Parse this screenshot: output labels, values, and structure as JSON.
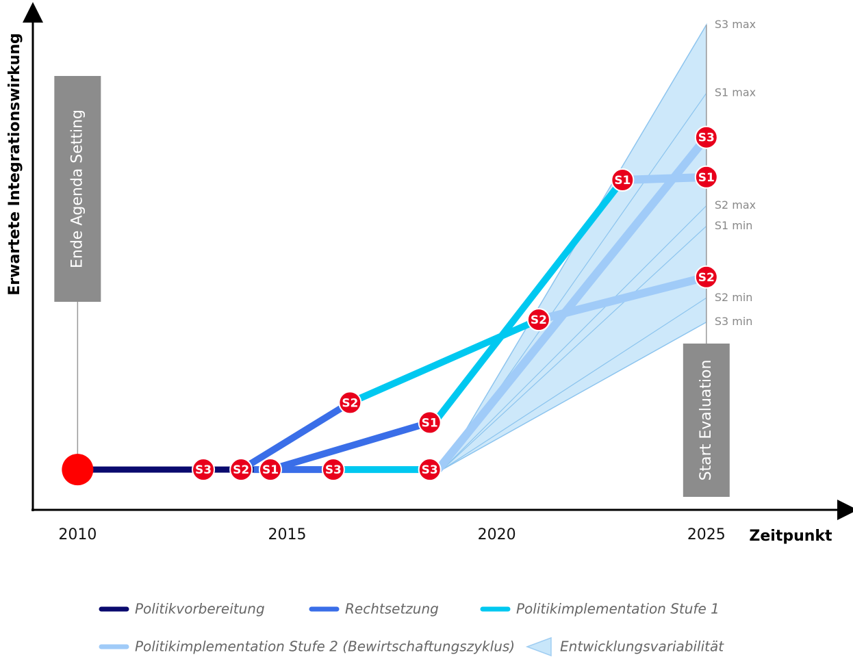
{
  "chart_data": {
    "type": "line",
    "xlabel": "Zeitpunkt",
    "ylabel": "Erwartete Integrationswirkung",
    "xlim": [
      2008.9,
      2028.4
    ],
    "ylim": [
      0,
      103
    ],
    "xticks": [
      2010,
      2015,
      2020,
      2025
    ],
    "start": {
      "x": 2010,
      "value": 8.3,
      "color": "#ff0000"
    },
    "series": [
      {
        "name": "Politikvorbereitung",
        "color": "#0a0a6e",
        "lines": [
          {
            "x": [
              2010.3,
              2014.2
            ],
            "values": [
              8.3,
              8.3
            ]
          }
        ]
      },
      {
        "name": "Rechtsetzung",
        "color": "#3a6ee8",
        "lines": [
          {
            "x": [
              2013.9,
              2016.5
            ],
            "values": [
              8.3,
              22.1
            ]
          },
          {
            "x": [
              2014.6,
              2018.4
            ],
            "values": [
              8.3,
              18.0
            ]
          },
          {
            "x": [
              2014.2,
              2016.1
            ],
            "values": [
              8.3,
              8.3
            ]
          }
        ]
      },
      {
        "name": "Politikimplementation Stufe 1",
        "color": "#00c8f0",
        "lines": [
          {
            "x": [
              2016.5,
              2021.0
            ],
            "values": [
              22.1,
              39.2
            ]
          },
          {
            "x": [
              2018.4,
              2018.6,
              2023.0
            ],
            "values": [
              18.0,
              19.0,
              68.0
            ]
          },
          {
            "x": [
              2016.1,
              2018.6
            ],
            "values": [
              8.3,
              8.3
            ]
          }
        ]
      },
      {
        "name": "Politikimplementation Stufe 2 (Bewirtschaftungszyklus)",
        "color": "#a0cbf8",
        "lines": [
          {
            "x": [
              2023.0,
              2025
            ],
            "values": [
              68.0,
              68.6
            ]
          },
          {
            "x": [
              2021.0,
              2025
            ],
            "values": [
              39.2,
              48.0
            ]
          },
          {
            "x": [
              2018.6,
              2025
            ],
            "values": [
              8.3,
              76.8
            ]
          }
        ]
      }
    ],
    "band": {
      "name": "Entwicklungsvariabilität",
      "color": "#c8e6fa",
      "origin": {
        "x": 2018.7,
        "value": 8.3
      },
      "x": 2025,
      "rays": [
        {
          "label": "S3 max",
          "value": 100
        },
        {
          "label": "S1 max",
          "value": 85.9
        },
        {
          "label": "S2 max",
          "value": 62.7
        },
        {
          "label": "S1 min",
          "value": 58.5
        },
        {
          "label": "S2 min",
          "value": 43.7
        },
        {
          "label": "S3 min",
          "value": 38.7
        }
      ]
    },
    "markers": [
      {
        "label": "S3",
        "x": 2013.0,
        "value": 8.3
      },
      {
        "label": "S2",
        "x": 2013.9,
        "value": 8.3
      },
      {
        "label": "S1",
        "x": 2014.6,
        "value": 8.3
      },
      {
        "label": "S3",
        "x": 2016.1,
        "value": 8.3
      },
      {
        "label": "S3",
        "x": 2018.4,
        "value": 8.3
      },
      {
        "label": "S2",
        "x": 2016.5,
        "value": 22.1
      },
      {
        "label": "S1",
        "x": 2018.4,
        "value": 18.0
      },
      {
        "label": "S2",
        "x": 2021.0,
        "value": 39.2
      },
      {
        "label": "S1",
        "x": 2023.0,
        "value": 68.0
      },
      {
        "label": "S1",
        "x": 2025,
        "value": 68.6
      },
      {
        "label": "S2",
        "x": 2025,
        "value": 48.0
      },
      {
        "label": "S3",
        "x": 2025,
        "value": 76.8
      }
    ],
    "annotations": [
      {
        "text": "Ende Agenda Setting",
        "x": 2010
      },
      {
        "text": "Start Evaluation",
        "x": 2025
      }
    ]
  }
}
